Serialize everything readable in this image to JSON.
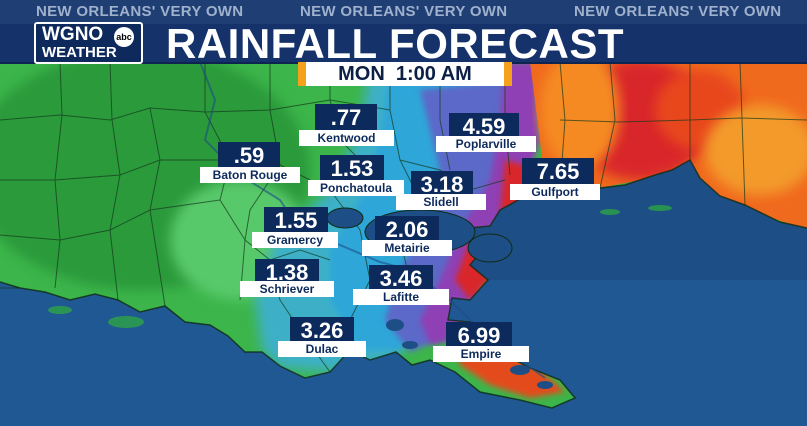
{
  "header": {
    "tagline_left": "NEW ORLEANS' VERY OWN",
    "tagline_center": "NEW ORLEANS' VERY OWN",
    "tagline_right": "NEW ORLEANS' VERY OWN",
    "title": "RAINFALL FORECAST"
  },
  "logo": {
    "call_letters": "WGNO",
    "network": "abc",
    "subtitle": "WEATHER"
  },
  "timestamp": "MON  1:00 AM",
  "colors": {
    "header_navy": "#15336a",
    "label_navy": "#0d2a5c",
    "accent_orange": "#f4a21b",
    "water_blue": "#1d4f86",
    "low_rain_green": "#2fae3c",
    "mid_rain_cyan": "#35b9d6",
    "high_rain_purple": "#8f3fb4",
    "very_high_red": "#d9262a",
    "extreme_orange": "#f06a1d"
  },
  "locations": [
    {
      "name": "Kentwood",
      "amount": ".77"
    },
    {
      "name": "Poplarville",
      "amount": "4.59"
    },
    {
      "name": "Baton Rouge",
      "amount": ".59"
    },
    {
      "name": "Ponchatoula",
      "amount": "1.53"
    },
    {
      "name": "Slidell",
      "amount": "3.18"
    },
    {
      "name": "Gulfport",
      "amount": "7.65"
    },
    {
      "name": "Gramercy",
      "amount": "1.55"
    },
    {
      "name": "Metairie",
      "amount": "2.06"
    },
    {
      "name": "Schriever",
      "amount": "1.38"
    },
    {
      "name": "Lafitte",
      "amount": "3.46"
    },
    {
      "name": "Dulac",
      "amount": "3.26"
    },
    {
      "name": "Empire",
      "amount": "6.99"
    }
  ]
}
